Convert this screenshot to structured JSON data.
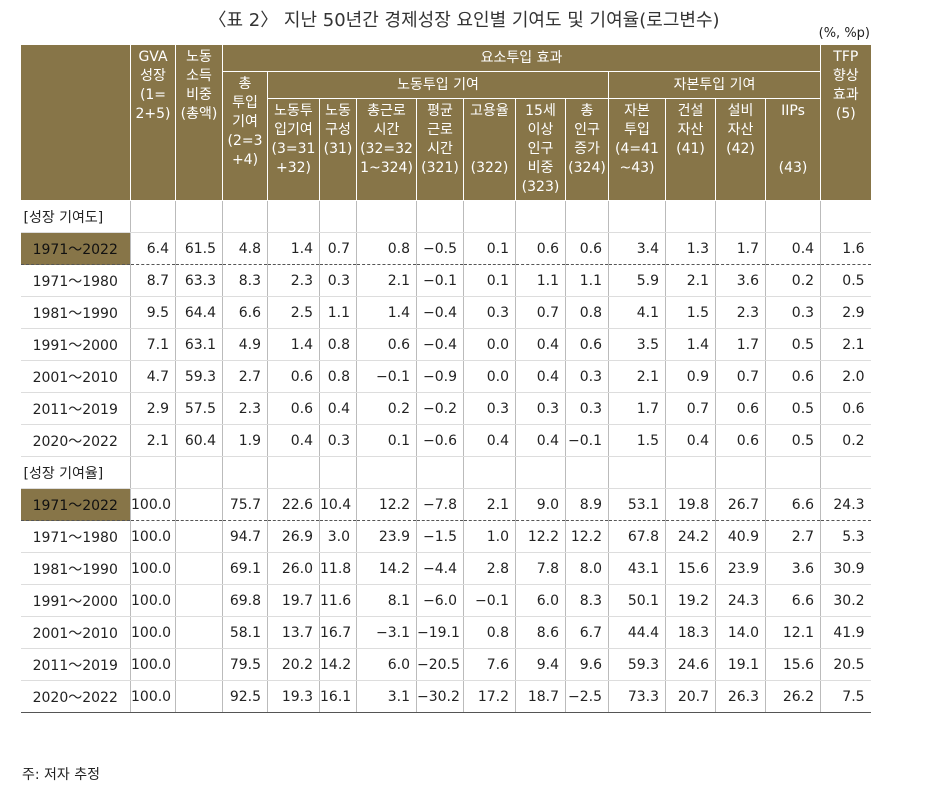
{
  "title": "〈표 2〉 지난 50년간 경제성장 요인별 기여도 및 기여율(로그변수)",
  "unit": "(%, %p)",
  "groups": {
    "factor": "요소투입 효과",
    "labor": "노동투입 기여",
    "capital": "자본투입 기여"
  },
  "columns": [
    "GVA\n성장\n(1=\n2+5)",
    "노동\n소득\n비중\n(총액)",
    "총\n투입\n기여\n(2=3\n+4)",
    "노동투\n입기여\n(3=31\n+32)",
    "노동\n구성\n(31)",
    "총근로\n시간\n(32=32\n1~324)",
    "평균\n근로\n시간\n(321)",
    "고용율\n\n\n(322)",
    "15세\n이상\n인구\n비중\n(323)",
    "총\n인구\n증가\n(324)",
    "자본\n투입\n(4=41\n~43)",
    "건설\n자산\n(41)",
    "설비\n자산\n(42)",
    "IIPs\n\n\n(43)",
    "TFP\n향상\n효과\n(5)"
  ],
  "sections": [
    {
      "label": "[성장 기여도]",
      "rows": [
        {
          "label": "1971～2022",
          "values": [
            "6.4",
            "61.5",
            "4.8",
            "1.4",
            "0.7",
            "0.8",
            "−0.5",
            "0.1",
            "0.6",
            "0.6",
            "3.4",
            "1.3",
            "1.7",
            "0.4",
            "1.6"
          ]
        },
        {
          "label": "1971～1980",
          "values": [
            "8.7",
            "63.3",
            "8.3",
            "2.3",
            "0.3",
            "2.1",
            "−0.1",
            "0.1",
            "1.1",
            "1.1",
            "5.9",
            "2.1",
            "3.6",
            "0.2",
            "0.5"
          ]
        },
        {
          "label": "1981～1990",
          "values": [
            "9.5",
            "64.4",
            "6.6",
            "2.5",
            "1.1",
            "1.4",
            "−0.4",
            "0.3",
            "0.7",
            "0.8",
            "4.1",
            "1.5",
            "2.3",
            "0.3",
            "2.9"
          ]
        },
        {
          "label": "1991～2000",
          "values": [
            "7.1",
            "63.1",
            "4.9",
            "1.4",
            "0.8",
            "0.6",
            "−0.4",
            "0.0",
            "0.4",
            "0.6",
            "3.5",
            "1.4",
            "1.7",
            "0.5",
            "2.1"
          ]
        },
        {
          "label": "2001～2010",
          "values": [
            "4.7",
            "59.3",
            "2.7",
            "0.6",
            "0.8",
            "−0.1",
            "−0.9",
            "0.0",
            "0.4",
            "0.3",
            "2.1",
            "0.9",
            "0.7",
            "0.6",
            "2.0"
          ]
        },
        {
          "label": "2011～2019",
          "values": [
            "2.9",
            "57.5",
            "2.3",
            "0.6",
            "0.4",
            "0.2",
            "−0.2",
            "0.3",
            "0.3",
            "0.3",
            "1.7",
            "0.7",
            "0.6",
            "0.5",
            "0.6"
          ]
        },
        {
          "label": "2020～2022",
          "values": [
            "2.1",
            "60.4",
            "1.9",
            "0.4",
            "0.3",
            "0.1",
            "−0.6",
            "0.4",
            "0.4",
            "−0.1",
            "1.5",
            "0.4",
            "0.6",
            "0.5",
            "0.2"
          ]
        }
      ]
    },
    {
      "label": "[성장 기여율]",
      "rows": [
        {
          "label": "1971～2022",
          "values": [
            "100.0",
            null,
            "75.7",
            "22.6",
            "10.4",
            "12.2",
            "−7.8",
            "2.1",
            "9.0",
            "8.9",
            "53.1",
            "19.8",
            "26.7",
            "6.6",
            "24.3"
          ]
        },
        {
          "label": "1971～1980",
          "values": [
            "100.0",
            null,
            "94.7",
            "26.9",
            "3.0",
            "23.9",
            "−1.5",
            "1.0",
            "12.2",
            "12.2",
            "67.8",
            "24.2",
            "40.9",
            "2.7",
            "5.3"
          ]
        },
        {
          "label": "1981～1990",
          "values": [
            "100.0",
            null,
            "69.1",
            "26.0",
            "11.8",
            "14.2",
            "−4.4",
            "2.8",
            "7.8",
            "8.0",
            "43.1",
            "15.6",
            "23.9",
            "3.6",
            "30.9"
          ]
        },
        {
          "label": "1991～2000",
          "values": [
            "100.0",
            null,
            "69.8",
            "19.7",
            "11.6",
            "8.1",
            "−6.0",
            "−0.1",
            "6.0",
            "8.3",
            "50.1",
            "19.2",
            "24.3",
            "6.6",
            "30.2"
          ]
        },
        {
          "label": "2001～2010",
          "values": [
            "100.0",
            null,
            "58.1",
            "13.7",
            "16.7",
            "−3.1",
            "−19.1",
            "0.8",
            "8.6",
            "6.7",
            "44.4",
            "18.3",
            "14.0",
            "12.1",
            "41.9"
          ]
        },
        {
          "label": "2011～2019",
          "values": [
            "100.0",
            null,
            "79.5",
            "20.2",
            "14.2",
            "6.0",
            "−20.5",
            "7.6",
            "9.4",
            "9.6",
            "59.3",
            "24.6",
            "19.1",
            "15.6",
            "20.5"
          ]
        },
        {
          "label": "2020～2022",
          "values": [
            "100.0",
            null,
            "92.5",
            "19.3",
            "16.1",
            "3.1",
            "−30.2",
            "17.2",
            "18.7",
            "−2.5",
            "73.3",
            "20.7",
            "26.3",
            "26.2",
            "7.5"
          ]
        }
      ]
    }
  ],
  "note": "주: 저자 추정"
}
